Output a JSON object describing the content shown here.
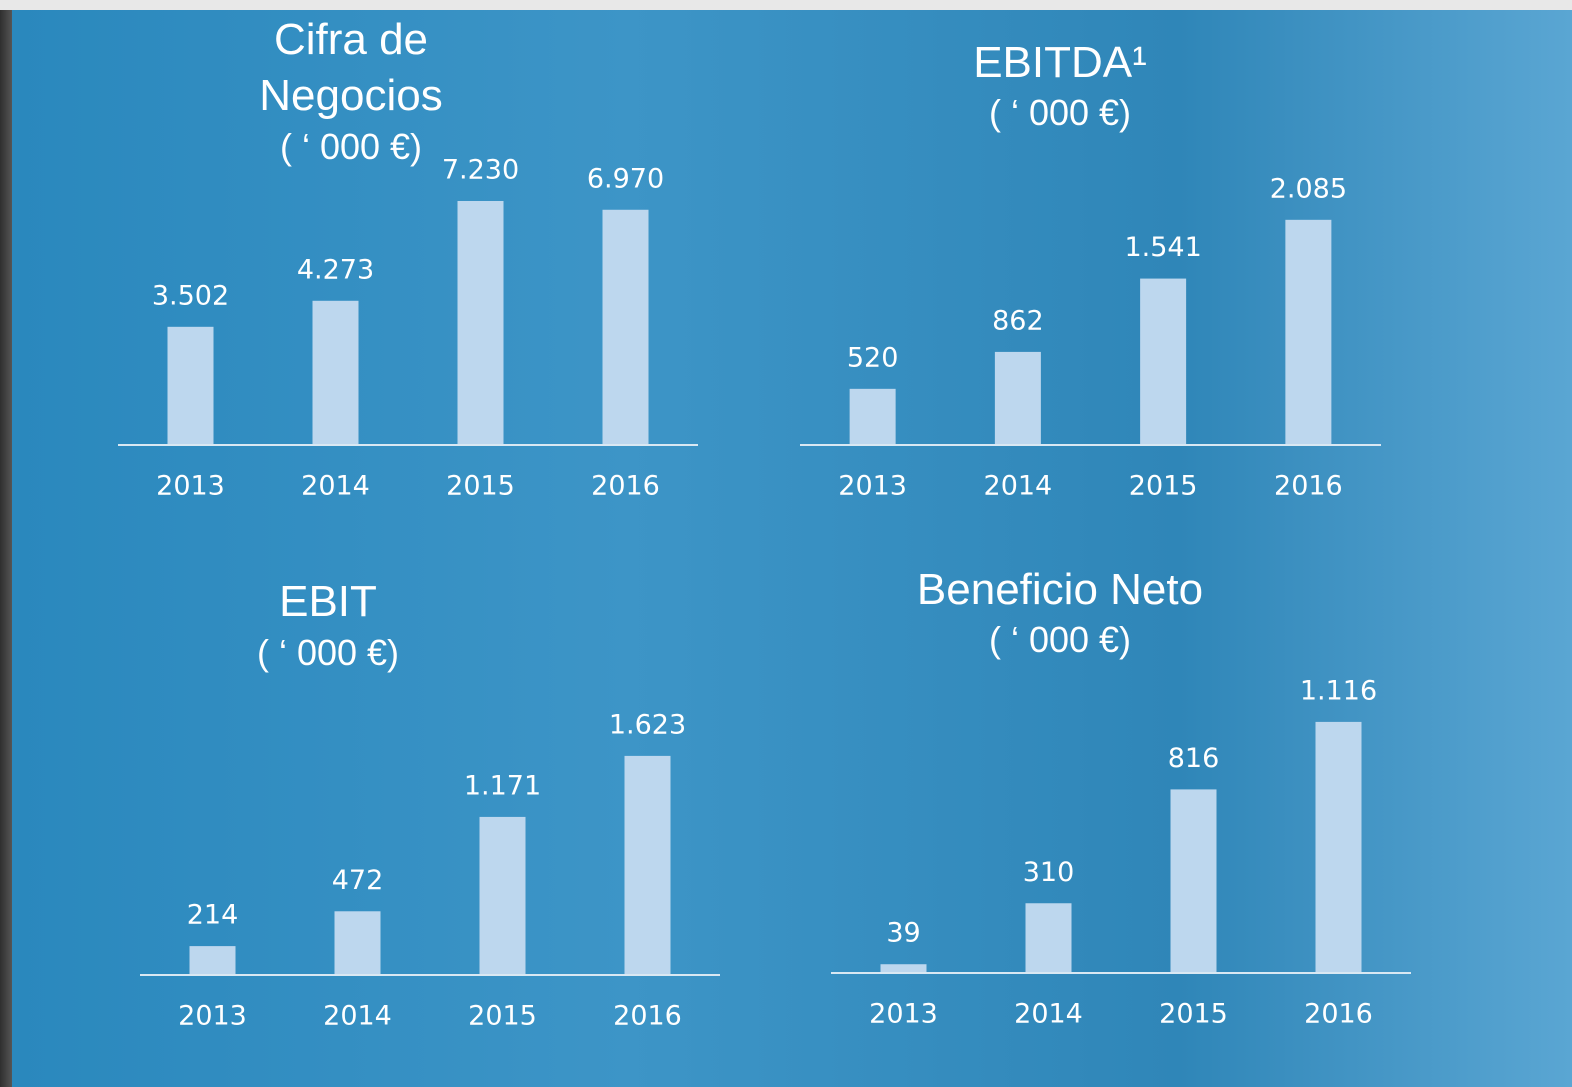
{
  "chart_data": [
    {
      "type": "bar",
      "title": "Cifra de Negocios",
      "subtitle": "( ‘ 000 €)",
      "categories": [
        "2013",
        "2014",
        "2015",
        "2016"
      ],
      "values": [
        3502,
        4273,
        7230,
        6970
      ],
      "value_labels": [
        "3.502",
        "4.273",
        "7.230",
        "6.970"
      ],
      "color": "#bdd7ee",
      "ylim": [
        0,
        8000
      ]
    },
    {
      "type": "bar",
      "title": "EBITDA¹",
      "subtitle": "( ‘ 000 €)",
      "categories": [
        "2013",
        "2014",
        "2015",
        "2016"
      ],
      "values": [
        520,
        862,
        1541,
        2085
      ],
      "value_labels": [
        "520",
        "862",
        "1.541",
        "2.085"
      ],
      "color": "#bdd7ee",
      "ylim": [
        0,
        2500
      ]
    },
    {
      "type": "bar",
      "title": "EBIT",
      "subtitle": "( ‘ 000 €)",
      "categories": [
        "2013",
        "2014",
        "2015",
        "2016"
      ],
      "values": [
        214,
        472,
        1171,
        1623
      ],
      "value_labels": [
        "214",
        "472",
        "1.171",
        "1.623"
      ],
      "color": "#bdd7ee",
      "ylim": [
        0,
        2000
      ]
    },
    {
      "type": "bar",
      "title": "Beneficio Neto",
      "subtitle": "( ‘ 000 €)",
      "categories": [
        "2013",
        "2014",
        "2015",
        "2016"
      ],
      "values": [
        39,
        310,
        816,
        1116
      ],
      "value_labels": [
        "39",
        "310",
        "816",
        "1.116"
      ],
      "color": "#bdd7ee",
      "ylim": [
        0,
        1200
      ]
    }
  ]
}
